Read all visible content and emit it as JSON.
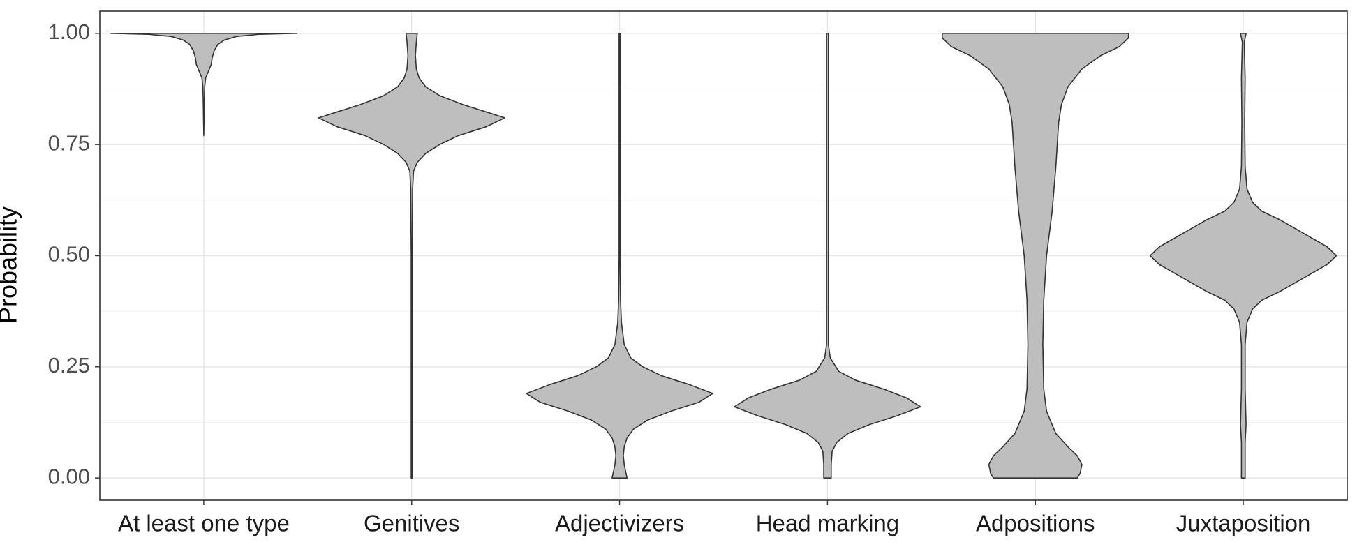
{
  "chart_data": {
    "type": "violin",
    "y_label": "Probability",
    "fill": "#bebebe",
    "stroke": "#333333",
    "ylim": [
      -0.05,
      1.05
    ],
    "yticks": [
      {
        "value": 0,
        "label": "0.00"
      },
      {
        "value": 0.25,
        "label": "0.25"
      },
      {
        "value": 0.5,
        "label": "0.50"
      },
      {
        "value": 0.75,
        "label": "0.75"
      },
      {
        "value": 1,
        "label": "1.00"
      }
    ],
    "minor_yticks": [
      0.125,
      0.375,
      0.625,
      0.875
    ],
    "grid": true,
    "series": [
      {
        "name": "At least one type",
        "y": [
          1.0,
          0.998,
          0.993,
          0.985,
          0.975,
          0.96,
          0.945,
          0.93,
          0.915,
          0.9,
          0.88,
          0.85,
          0.77
        ],
        "density": [
          1.0,
          0.6,
          0.35,
          0.22,
          0.15,
          0.11,
          0.09,
          0.08,
          0.05,
          0.02,
          0.01,
          0.006,
          0
        ]
      },
      {
        "name": "Genitives",
        "y": [
          1.0,
          0.98,
          0.95,
          0.92,
          0.9,
          0.88,
          0.86,
          0.84,
          0.82,
          0.81,
          0.79,
          0.77,
          0.75,
          0.73,
          0.71,
          0.69,
          0.65,
          0.5,
          0
        ],
        "density": [
          0.06,
          0.05,
          0.04,
          0.05,
          0.08,
          0.15,
          0.3,
          0.55,
          0.85,
          1.0,
          0.8,
          0.5,
          0.3,
          0.15,
          0.06,
          0.02,
          0.01,
          0.005,
          0.005
        ]
      },
      {
        "name": "Adjectivizers",
        "y": [
          1.0,
          0.5,
          0.4,
          0.35,
          0.3,
          0.27,
          0.25,
          0.23,
          0.21,
          0.19,
          0.17,
          0.15,
          0.13,
          0.11,
          0.09,
          0.07,
          0.05,
          0.03,
          0.01,
          0
        ],
        "density": [
          0.005,
          0.005,
          0.01,
          0.02,
          0.05,
          0.12,
          0.25,
          0.45,
          0.75,
          1.0,
          0.85,
          0.55,
          0.3,
          0.15,
          0.08,
          0.05,
          0.04,
          0.05,
          0.07,
          0.08
        ]
      },
      {
        "name": "Head marking",
        "y": [
          1.0,
          0.3,
          0.27,
          0.24,
          0.22,
          0.2,
          0.18,
          0.16,
          0.14,
          0.12,
          0.1,
          0.08,
          0.06,
          0.03,
          0
        ],
        "density": [
          0.01,
          0.01,
          0.03,
          0.12,
          0.3,
          0.6,
          0.85,
          1.0,
          0.75,
          0.45,
          0.22,
          0.1,
          0.05,
          0.04,
          0.04
        ]
      },
      {
        "name": "Adpositions",
        "y": [
          1.0,
          0.99,
          0.97,
          0.95,
          0.92,
          0.88,
          0.84,
          0.8,
          0.7,
          0.6,
          0.5,
          0.4,
          0.3,
          0.2,
          0.15,
          0.1,
          0.07,
          0.05,
          0.03,
          0.01,
          0
        ],
        "density": [
          1.0,
          1.0,
          0.9,
          0.7,
          0.5,
          0.35,
          0.28,
          0.25,
          0.22,
          0.18,
          0.12,
          0.09,
          0.08,
          0.09,
          0.12,
          0.22,
          0.35,
          0.45,
          0.5,
          0.48,
          0.45
        ]
      },
      {
        "name": "Juxtaposition",
        "y": [
          1.0,
          0.98,
          0.9,
          0.8,
          0.7,
          0.65,
          0.62,
          0.6,
          0.58,
          0.55,
          0.52,
          0.5,
          0.48,
          0.45,
          0.42,
          0.4,
          0.38,
          0.35,
          0.3,
          0.2,
          0.12,
          0.08,
          0
        ],
        "density": [
          0.03,
          0.01,
          0.02,
          0.015,
          0.02,
          0.04,
          0.1,
          0.2,
          0.4,
          0.65,
          0.9,
          1.0,
          0.9,
          0.65,
          0.4,
          0.2,
          0.1,
          0.04,
          0.02,
          0.02,
          0.03,
          0.02,
          0.02
        ]
      }
    ]
  }
}
